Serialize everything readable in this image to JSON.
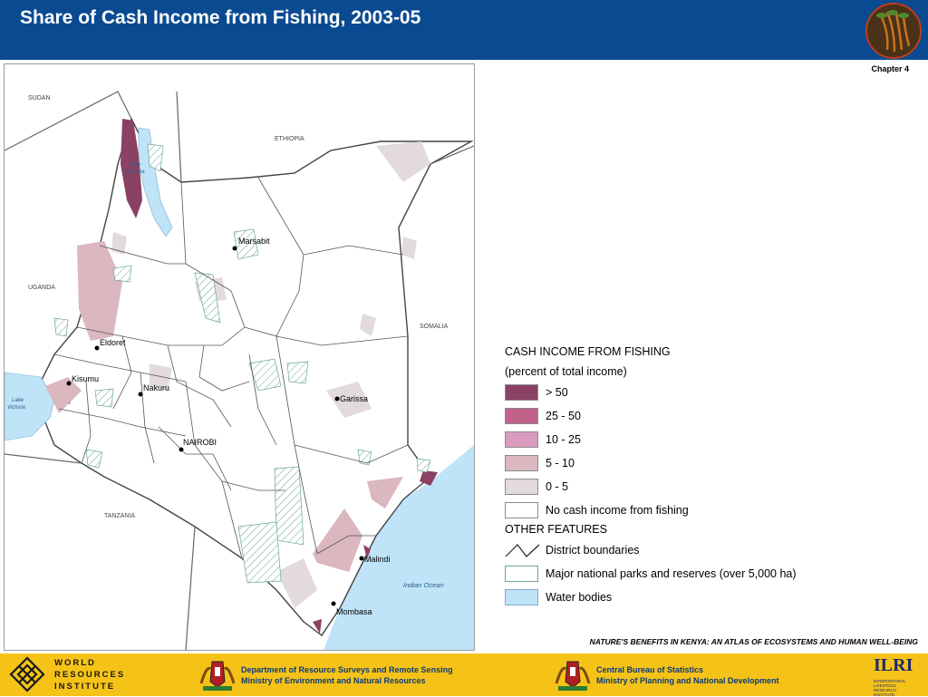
{
  "header": {
    "title": "Share of Cash Income from Fishing, 2003-05",
    "chapter": "Chapter 4"
  },
  "map": {
    "countries": [
      "SUDAN",
      "ETHIOPIA",
      "UGANDA",
      "SOMALIA",
      "TANZANIA"
    ],
    "water_labels": {
      "lake_turkana": [
        "Lake",
        "Turkana"
      ],
      "lake_victoria": [
        "Lake",
        "Victoria"
      ],
      "indian_ocean": "Indian Ocean"
    },
    "towns": [
      "Marsabit",
      "Eldoret",
      "Kisumu",
      "Nakuru",
      "Garissa",
      "NAIROBI",
      "Malindi",
      "Mombasa"
    ]
  },
  "legend": {
    "title": "CASH INCOME FROM FISHING",
    "subtitle": "(percent of total income)",
    "classes": [
      {
        "label": "> 50",
        "color": "#8b4163"
      },
      {
        "label": "25 - 50",
        "color": "#c2628a"
      },
      {
        "label": "10 - 25",
        "color": "#d99cbe"
      },
      {
        "label": "5 - 10",
        "color": "#dbb7bf"
      },
      {
        "label": "0 - 5",
        "color": "#e2dadd"
      },
      {
        "label": "No cash income from fishing",
        "color": "#ffffff"
      }
    ],
    "other_title": "OTHER FEATURES",
    "other": [
      {
        "label": "District boundaries"
      },
      {
        "label": "Major national parks and reserves (over 5,000 ha)"
      },
      {
        "label": "Water bodies"
      }
    ]
  },
  "colors": {
    "header_blue": "#0a4a91",
    "footer_yellow": "#f5c218",
    "water": "#bfe3f7",
    "park_hatch": "#6aa59a"
  },
  "atlas_title": "NATURE'S BENEFITS IN KENYA: AN ATLAS OF ECOSYSTEMS AND HUMAN WELL-BEING",
  "footer": {
    "wri": [
      "WORLD",
      "RESOURCES",
      "INSTITUTE"
    ],
    "dept1": [
      "Department of Resource Surveys and Remote Sensing",
      "Ministry of Environment and Natural Resources"
    ],
    "dept2": [
      "Central Bureau of Statistics",
      "Ministry of Planning and National Development"
    ],
    "ilri": "ILRI",
    "ilri_small": [
      "INTERNATIONAL",
      "LIVESTOCK RESEARCH",
      "INSTITUTE"
    ]
  }
}
